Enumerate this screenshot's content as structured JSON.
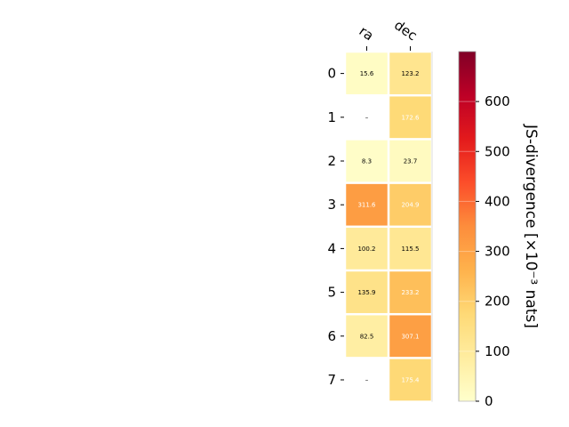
{
  "chart_data": {
    "type": "heatmap",
    "columns": [
      "ra",
      "dec"
    ],
    "rows": [
      "0",
      "1",
      "2",
      "3",
      "4",
      "5",
      "6",
      "7"
    ],
    "values": [
      [
        15.6,
        123.2
      ],
      [
        null,
        172.6
      ],
      [
        8.3,
        23.7
      ],
      [
        311.6,
        204.9
      ],
      [
        100.2,
        115.5
      ],
      [
        135.9,
        233.2
      ],
      [
        82.5,
        307.1
      ],
      [
        null,
        175.4
      ]
    ],
    "cell_labels": [
      [
        "15.6",
        "123.2"
      ],
      [
        "–",
        "172.6"
      ],
      [
        "8.3",
        "23.7"
      ],
      [
        "311.6",
        "204.9"
      ],
      [
        "100.2",
        "115.5"
      ],
      [
        "135.9",
        "233.2"
      ],
      [
        "82.5",
        "307.1"
      ],
      [
        "–",
        "175.4"
      ]
    ],
    "colorbar": {
      "label": "JS-divergence [×10⁻³ nats]",
      "range": [
        0,
        700
      ],
      "ticks": [
        0,
        100,
        200,
        300,
        400,
        500,
        600
      ],
      "tick_labels": [
        "0",
        "100",
        "200",
        "300",
        "400",
        "500",
        "600"
      ],
      "colormap": "YlOrRd"
    },
    "colors": {
      "missing_cell": "#ffffff",
      "border": "#ffffff",
      "dark_text": "#000000",
      "light_text": "#ffffff"
    }
  }
}
